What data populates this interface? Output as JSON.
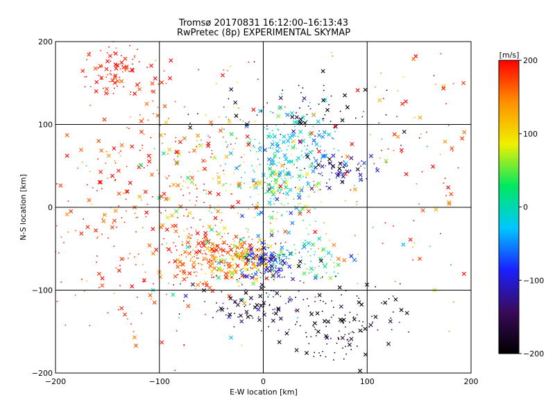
{
  "chart_data": {
    "type": "scatter",
    "title": "Tromsø 20170831 16:12:00–16:13:43",
    "subtitle": "RwPretec (8p) EXPERIMENTAL SKYMAP",
    "xlabel": "E-W location [km]",
    "ylabel": "N-S location [km]",
    "xlim": [
      -200,
      200
    ],
    "ylim": [
      -200,
      200
    ],
    "xticks": [
      "−200",
      "−100",
      "0",
      "100",
      "200"
    ],
    "yticks": [
      "−200",
      "−100",
      "0",
      "100",
      "200"
    ],
    "grid": true,
    "colorbar": {
      "label": "[m/s]",
      "range": [
        -200,
        200
      ],
      "ticks": [
        "−200",
        "−100",
        "0",
        "100",
        "200"
      ],
      "colors": [
        "#000000",
        "#3a0a5a",
        "#1a20ff",
        "#00c8ff",
        "#00e860",
        "#f0f000",
        "#ff9000",
        "#ff0000"
      ]
    },
    "clusters": [
      {
        "cx": -140,
        "cy": 165,
        "sx": 15,
        "sy": 15,
        "n": 80,
        "v": 190,
        "vs": 15
      },
      {
        "cx": -50,
        "cy": -60,
        "sx": 25,
        "sy": 15,
        "n": 220,
        "v": 160,
        "vs": 40
      },
      {
        "cx": -15,
        "cy": -65,
        "sx": 15,
        "sy": 14,
        "n": 140,
        "v": 110,
        "vs": 60
      },
      {
        "cx": 5,
        "cy": -65,
        "sx": 12,
        "sy": 12,
        "n": 130,
        "v": -100,
        "vs": 35
      },
      {
        "cx": 25,
        "cy": 75,
        "sx": 25,
        "sy": 22,
        "n": 160,
        "v": -25,
        "vs": 30
      },
      {
        "cx": 15,
        "cy": 20,
        "sx": 22,
        "sy": 30,
        "n": 160,
        "v": 10,
        "vs": 60
      },
      {
        "cx": -40,
        "cy": 25,
        "sx": 35,
        "sy": 35,
        "n": 130,
        "v": 130,
        "vs": 60
      },
      {
        "cx": 75,
        "cy": 45,
        "sx": 15,
        "sy": 10,
        "n": 70,
        "v": -130,
        "vs": 50
      },
      {
        "cx": 50,
        "cy": -65,
        "sx": 20,
        "sy": 12,
        "n": 70,
        "v": 10,
        "vs": 50
      },
      {
        "cx": 75,
        "cy": -140,
        "sx": 25,
        "sy": 25,
        "n": 120,
        "v": -185,
        "vs": 20
      },
      {
        "cx": -10,
        "cy": -120,
        "sx": 30,
        "sy": 18,
        "n": 100,
        "v": -170,
        "vs": 35
      },
      {
        "cx": 40,
        "cy": 120,
        "sx": 40,
        "sy": 20,
        "n": 60,
        "v": -185,
        "vs": 25
      },
      {
        "cx": -130,
        "cy": -40,
        "sx": 50,
        "sy": 60,
        "n": 180,
        "v": 185,
        "vs": 20
      },
      {
        "cx": -100,
        "cy": 80,
        "sx": 45,
        "sy": 50,
        "n": 110,
        "v": 180,
        "vs": 25
      },
      {
        "cx": 140,
        "cy": 60,
        "sx": 45,
        "sy": 80,
        "n": 90,
        "v": 180,
        "vs": 30
      },
      {
        "cx": 0,
        "cy": 0,
        "sx": 120,
        "sy": 120,
        "n": 140,
        "v": 120,
        "vs": 110
      }
    ],
    "notes_marker_types": [
      "cross",
      "dot"
    ]
  }
}
